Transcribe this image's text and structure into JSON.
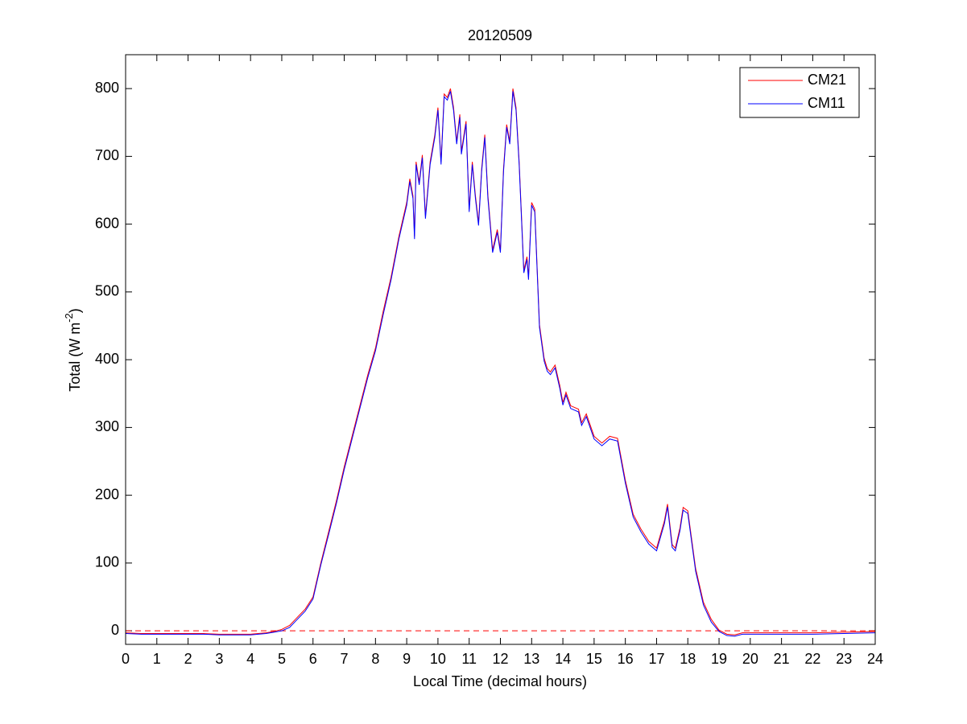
{
  "chart_data": {
    "type": "line",
    "title": "20120509",
    "xlabel": "Local Time (decimal hours)",
    "ylabel": {
      "text": "Total (W m",
      "superscript": "-2",
      "suffix": ")"
    },
    "x": [
      0,
      0.5,
      1,
      1.5,
      2,
      2.5,
      3,
      3.5,
      4,
      4.5,
      4.75,
      5,
      5.25,
      5.5,
      5.75,
      6,
      6.25,
      6.5,
      6.75,
      7,
      7.25,
      7.5,
      7.75,
      8,
      8.25,
      8.5,
      8.75,
      9,
      9.1,
      9.2,
      9.25,
      9.3,
      9.4,
      9.5,
      9.6,
      9.75,
      9.9,
      10,
      10.1,
      10.2,
      10.3,
      10.4,
      10.5,
      10.6,
      10.7,
      10.75,
      10.9,
      11,
      11.1,
      11.2,
      11.3,
      11.4,
      11.5,
      11.6,
      11.75,
      11.9,
      12,
      12.1,
      12.2,
      12.3,
      12.4,
      12.5,
      12.6,
      12.75,
      12.85,
      12.9,
      13,
      13.1,
      13.25,
      13.4,
      13.5,
      13.6,
      13.75,
      13.9,
      14,
      14.1,
      14.25,
      14.5,
      14.6,
      14.75,
      15,
      15.25,
      15.5,
      15.75,
      16,
      16.25,
      16.5,
      16.75,
      17,
      17.25,
      17.35,
      17.5,
      17.6,
      17.75,
      17.85,
      18,
      18.25,
      18.5,
      18.75,
      19,
      19.25,
      19.5,
      19.75,
      20,
      21,
      22,
      23,
      24
    ],
    "series": [
      {
        "name": "CM21",
        "color": "#ff0000",
        "values": [
          -3,
          -4,
          -4,
          -4,
          -4,
          -4,
          -5,
          -5,
          -5,
          -3,
          -1,
          2,
          8,
          20,
          32,
          50,
          100,
          146,
          192,
          242,
          287,
          332,
          377,
          417,
          472,
          522,
          582,
          632,
          667,
          642,
          582,
          692,
          662,
          702,
          612,
          692,
          732,
          772,
          692,
          792,
          787,
          800,
          772,
          722,
          762,
          707,
          752,
          622,
          692,
          642,
          602,
          682,
          732,
          642,
          562,
          592,
          562,
          682,
          747,
          722,
          800,
          772,
          692,
          532,
          552,
          522,
          632,
          622,
          452,
          402,
          387,
          382,
          392,
          362,
          337,
          352,
          332,
          327,
          307,
          320,
          287,
          277,
          287,
          284,
          222,
          172,
          150,
          132,
          122,
          162,
          187,
          127,
          122,
          152,
          182,
          177,
          92,
          42,
          17,
          1,
          -5,
          -6,
          -3,
          -3,
          -3,
          -3,
          -2,
          -1
        ]
      },
      {
        "name": "CM11",
        "color": "#0000ff",
        "values": [
          -4,
          -5,
          -5,
          -5,
          -5,
          -5,
          -6,
          -6,
          -6,
          -4,
          -2,
          0,
          5,
          17,
          29,
          47,
          97,
          142,
          188,
          238,
          283,
          328,
          373,
          413,
          467,
          518,
          578,
          628,
          663,
          638,
          578,
          688,
          658,
          698,
          608,
          688,
          728,
          768,
          688,
          788,
          783,
          796,
          768,
          718,
          758,
          703,
          748,
          618,
          688,
          638,
          598,
          678,
          728,
          638,
          558,
          588,
          558,
          678,
          743,
          718,
          796,
          768,
          688,
          528,
          548,
          518,
          628,
          618,
          448,
          398,
          383,
          378,
          388,
          358,
          333,
          348,
          328,
          323,
          303,
          316,
          283,
          273,
          283,
          280,
          218,
          168,
          146,
          128,
          118,
          158,
          183,
          123,
          118,
          148,
          178,
          173,
          88,
          38,
          13,
          -1,
          -7,
          -8,
          -5,
          -5,
          -5,
          -5,
          -4,
          -3
        ]
      }
    ],
    "hline": {
      "value": 0,
      "color": "#ff0000"
    },
    "xlim": [
      0,
      24
    ],
    "xticks": [
      0,
      1,
      2,
      3,
      4,
      5,
      6,
      7,
      8,
      9,
      10,
      11,
      12,
      13,
      14,
      15,
      16,
      17,
      18,
      19,
      20,
      21,
      22,
      23,
      24
    ],
    "ylim": [
      -20,
      850
    ],
    "yticks": [
      0,
      100,
      200,
      300,
      400,
      500,
      600,
      700,
      800
    ],
    "legend": "upper right"
  }
}
